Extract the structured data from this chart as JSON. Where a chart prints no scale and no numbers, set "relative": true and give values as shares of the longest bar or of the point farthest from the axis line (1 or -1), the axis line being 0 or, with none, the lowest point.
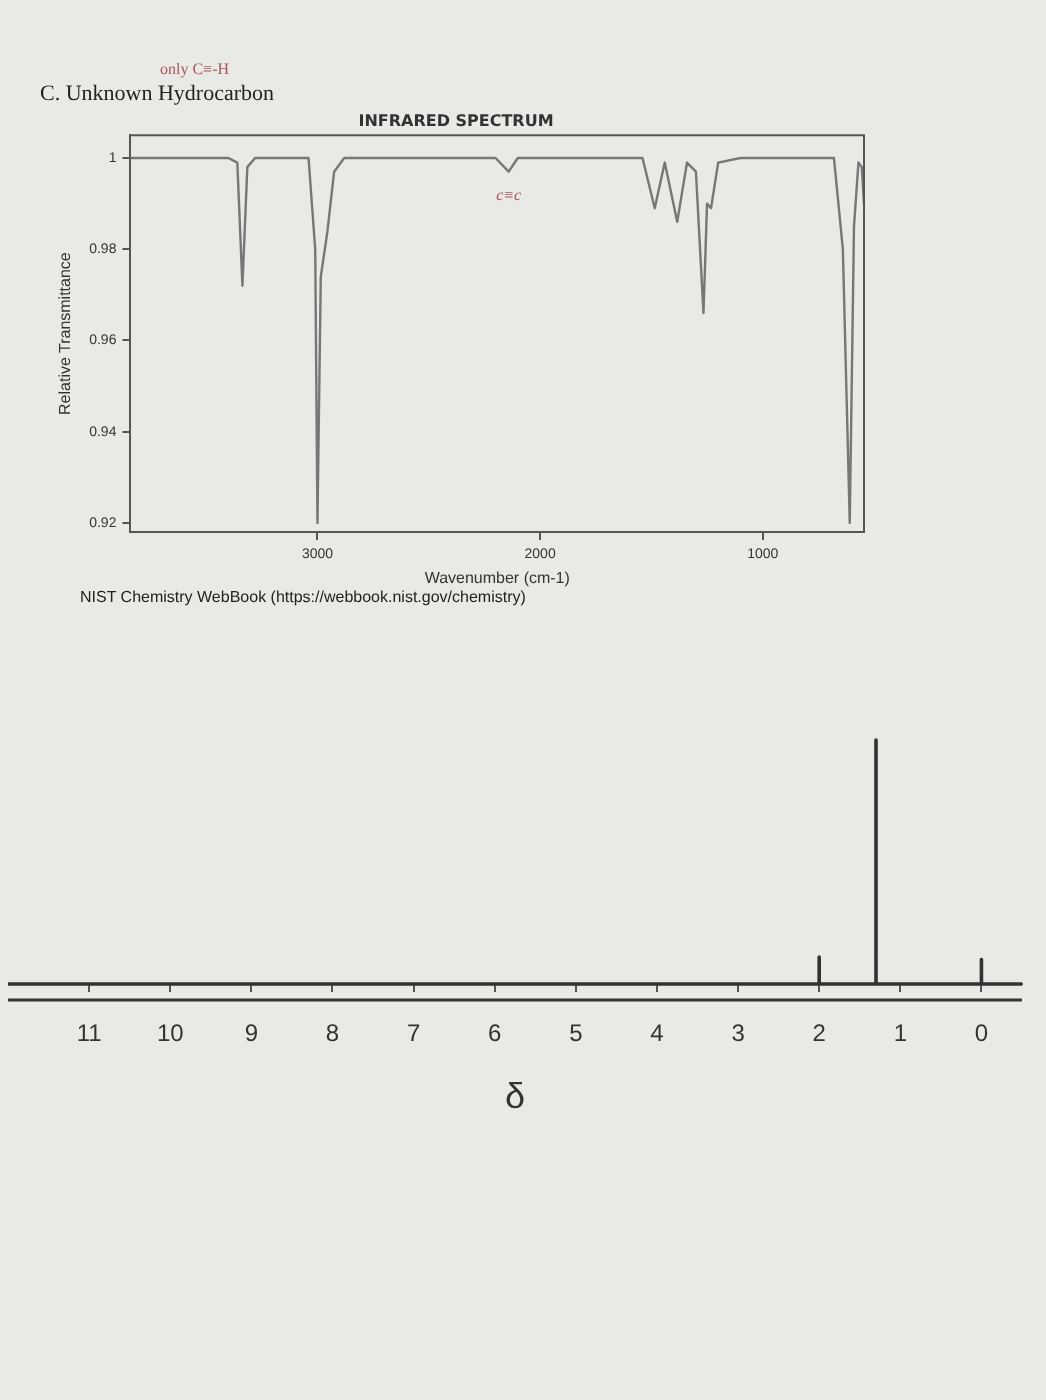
{
  "chart_data": [
    {
      "type": "line",
      "title": "INFRARED SPECTRUM",
      "xlabel": "Wavenumber (cm-1)",
      "ylabel": "Relative Transmittance",
      "annotations": [
        "only C≡-H",
        "C. Unknown Hydrocarbon",
        {
          "text": "c≡c",
          "x": 2141,
          "y": 0.997
        },
        "NIST Chemistry WebBook (https://webbook.nist.gov/chemistry)"
      ],
      "series": [
        {
          "color": "#777777",
          "x": [
            3840,
            3400,
            3360,
            3337,
            3315,
            3280,
            3040,
            3010,
            3000,
            2985,
            2955,
            2925,
            2880,
            2200,
            2141,
            2100,
            1540,
            1485,
            1440,
            1384,
            1340,
            1300,
            1266,
            1250,
            1232,
            1200,
            1100,
            680,
            640,
            609,
            590,
            570,
            555,
            545
          ],
          "values": [
            1.0,
            1.0,
            0.999,
            0.972,
            0.998,
            1.0,
            1.0,
            0.98,
            0.92,
            0.974,
            0.984,
            0.997,
            1.0,
            1.0,
            0.997,
            1.0,
            1.0,
            0.989,
            0.999,
            0.986,
            0.999,
            0.997,
            0.966,
            0.99,
            0.989,
            0.999,
            1.0,
            1.0,
            0.98,
            0.92,
            0.985,
            0.999,
            0.998,
            0.99
          ]
        }
      ],
      "xlim": [
        3840,
        545
      ],
      "xticks": [
        3000,
        2000,
        1000
      ],
      "ylim": [
        0.918,
        1.005
      ],
      "yticks": [
        {
          "value": 0.92,
          "label": "0.92"
        },
        {
          "value": 0.94,
          "label": "0.94"
        },
        {
          "value": 0.96,
          "label": "0.96"
        },
        {
          "value": 0.98,
          "label": "0.98"
        },
        1
      ],
      "grid": false,
      "legend": false,
      "marker": "none"
    },
    {
      "type": "line",
      "xlabel": "δ",
      "relative": true,
      "tick_labels": "x",
      "series": [
        {
          "color": "#333333",
          "x": [
            12,
            2.0,
            2.0,
            2.0,
            1.3,
            1.3,
            1.3,
            0,
            0,
            0,
            -0.5
          ],
          "values": [
            0,
            0,
            0.11,
            0,
            0,
            1,
            0,
            0,
            0.1,
            0,
            0
          ]
        }
      ],
      "xlim": [
        12,
        -0.5
      ],
      "xticks": [
        11,
        10,
        9,
        8,
        7,
        6,
        5,
        4,
        3,
        2,
        1,
        0
      ],
      "grid": false,
      "legend": false,
      "marker": "none"
    }
  ]
}
